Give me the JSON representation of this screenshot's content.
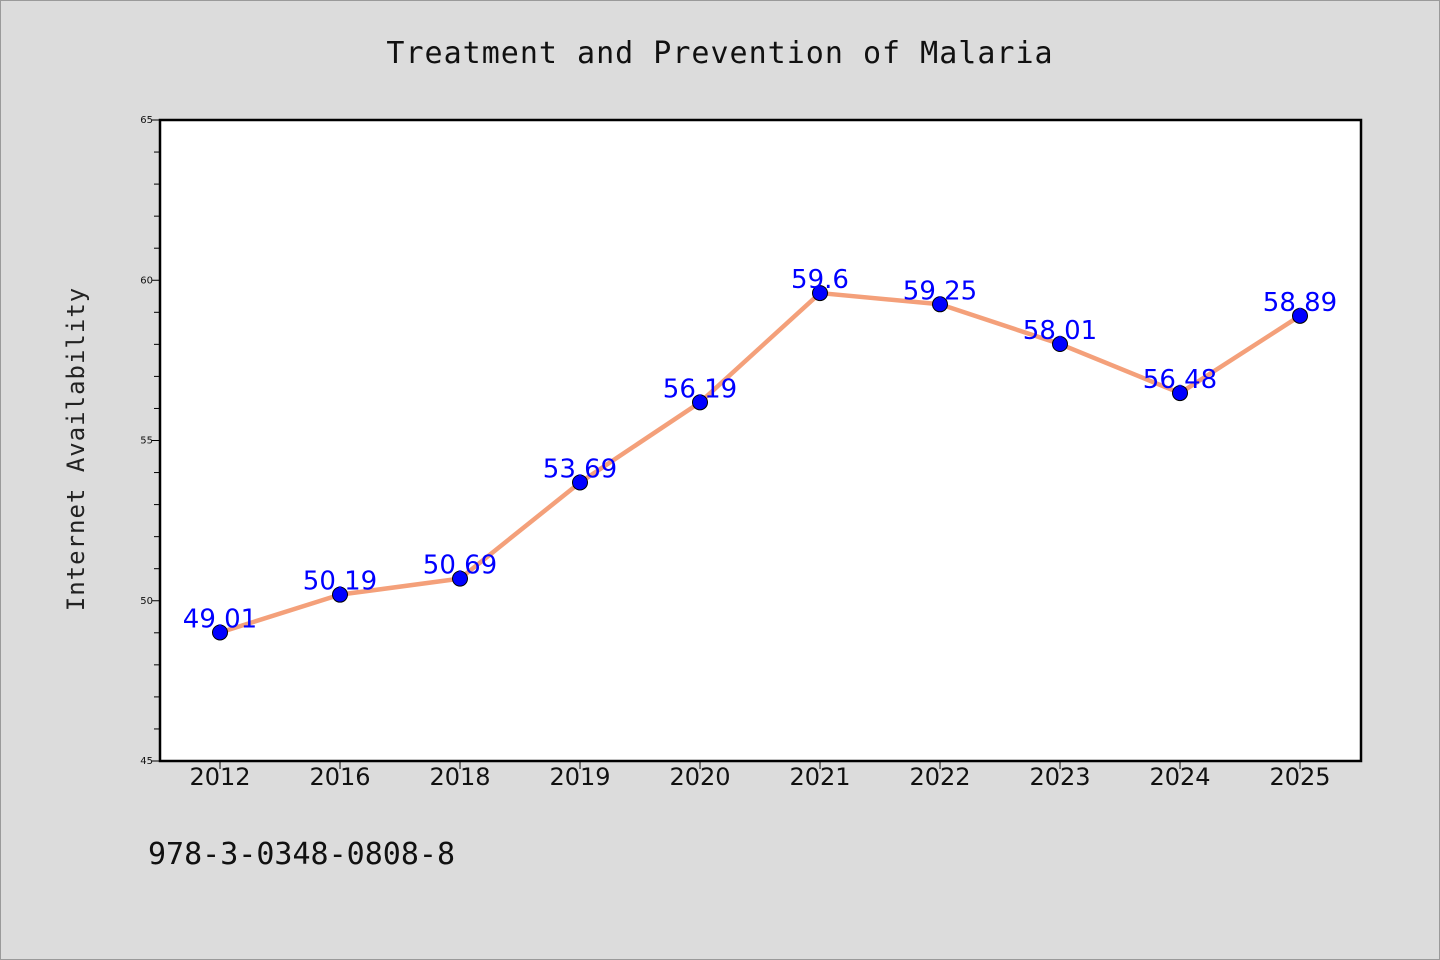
{
  "chart_data": {
    "type": "line",
    "title": "Treatment and Prevention of Malaria",
    "xlabel": "",
    "ylabel": "Internet Availability",
    "categories": [
      "2012",
      "2016",
      "2018",
      "2019",
      "2020",
      "2021",
      "2022",
      "2023",
      "2024",
      "2025"
    ],
    "values": [
      49.01,
      50.19,
      50.69,
      53.69,
      56.19,
      59.6,
      59.25,
      58.01,
      56.48,
      58.89
    ],
    "data_labels": [
      "49.01",
      "50.19",
      "50.69",
      "53.69",
      "56.19",
      "59.6",
      "59.25",
      "58.01",
      "56.48",
      "58.89"
    ],
    "ylim": [
      45,
      65
    ],
    "yticks": [
      "45",
      "50",
      "55",
      "60",
      "65"
    ],
    "grid": false,
    "line_color": "#f4a07a",
    "marker_color": "#0000ff",
    "label_color": "#0000ff"
  },
  "footer": {
    "isbn": "978-3-0348-0808-8"
  }
}
